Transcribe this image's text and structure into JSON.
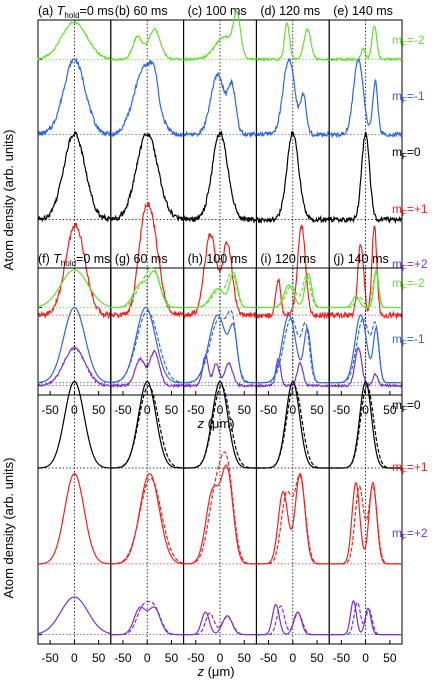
{
  "figure": {
    "ylabel": "Atom density (arb. units)",
    "xlabel_var": "z",
    "xlabel_unit": "(μm)",
    "mf_labels": [
      "m",
      "=-2",
      "=-1",
      "=0",
      "=+1",
      "=+2"
    ],
    "mf_label_prefix": "m",
    "mf_label_sub": "F",
    "mf_values": [
      "=-2",
      "=-1",
      "=0",
      "=+1",
      "=+2"
    ]
  },
  "chart_data": [
    {
      "type": "line",
      "group": "measured",
      "xlim": [
        -75,
        75
      ],
      "xticks": [
        -50,
        0,
        50
      ],
      "panels": [
        {
          "tag": "(a)",
          "title_prefix": "T",
          "title_sub": "hold",
          "title_rest": "=0 ms"
        },
        {
          "tag": "(b)",
          "title_prefix": "",
          "title_sub": "",
          "title_rest": "60 ms"
        },
        {
          "tag": "(c)",
          "title_prefix": "",
          "title_sub": "",
          "title_rest": "100 ms"
        },
        {
          "tag": "(d)",
          "title_prefix": "",
          "title_sub": "",
          "title_rest": "120 ms"
        },
        {
          "tag": "(e)",
          "title_prefix": "",
          "title_sub": "",
          "title_rest": "140 ms"
        }
      ],
      "series": [
        {
          "name": "mF=-2",
          "color": "#66dd33"
        },
        {
          "name": "mF=-1",
          "color": "#3366dd"
        },
        {
          "name": "mF=0",
          "color": "#000000"
        },
        {
          "name": "mF=+1",
          "color": "#ee2222"
        },
        {
          "name": "mF=+2",
          "color": "#7733cc"
        }
      ]
    },
    {
      "type": "line",
      "group": "simulated",
      "xlim": [
        -75,
        75
      ],
      "xticks": [
        -50,
        0,
        50
      ],
      "panels": [
        {
          "tag": "(f)",
          "title_prefix": "T",
          "title_sub": "hold",
          "title_rest": "=0 ms"
        },
        {
          "tag": "(g)",
          "title_prefix": "",
          "title_sub": "",
          "title_rest": "60 ms"
        },
        {
          "tag": "(h)",
          "title_prefix": "",
          "title_sub": "",
          "title_rest": "100 ms"
        },
        {
          "tag": "(i)",
          "title_prefix": "",
          "title_sub": "",
          "title_rest": "120 ms"
        },
        {
          "tag": "(j)",
          "title_prefix": "",
          "title_sub": "",
          "title_rest": "140 ms"
        }
      ],
      "series": [
        {
          "name": "mF=-2",
          "color": "#66dd33"
        },
        {
          "name": "mF=-1",
          "color": "#3366dd"
        },
        {
          "name": "mF=0",
          "color": "#000000"
        },
        {
          "name": "mF=+1",
          "color": "#ee2222"
        },
        {
          "name": "mF=+2",
          "color": "#7733cc"
        }
      ]
    }
  ]
}
